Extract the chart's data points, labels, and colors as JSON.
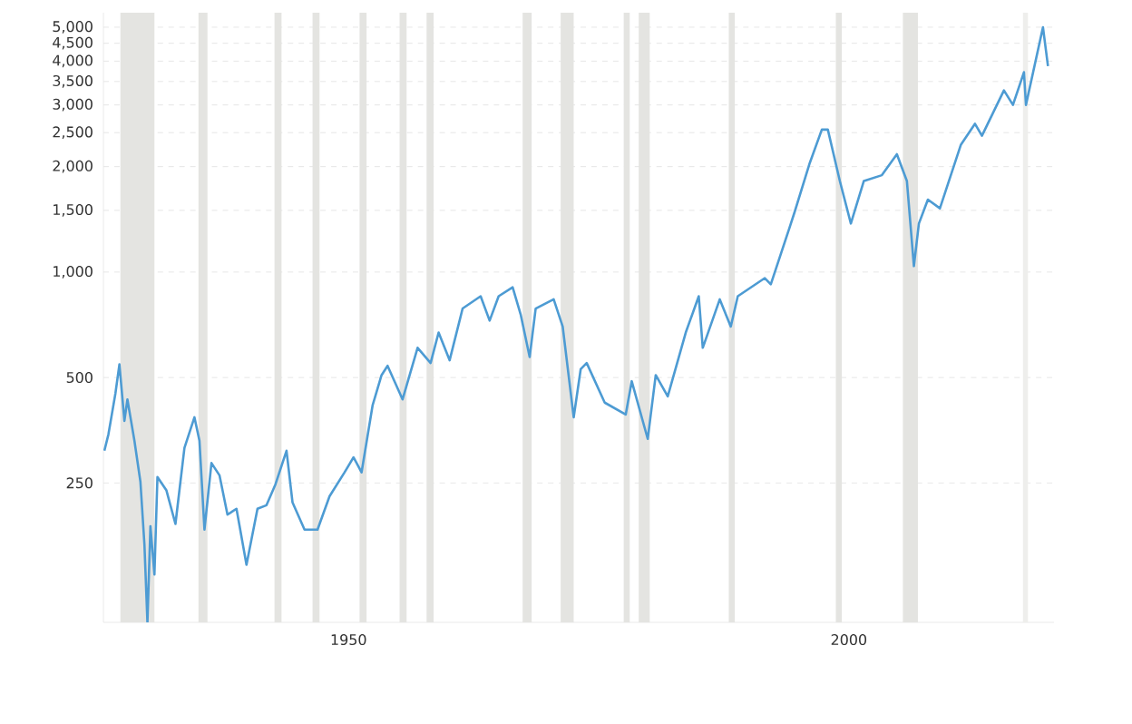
{
  "chart_data": {
    "type": "line",
    "x": [
      1925.6,
      1926.0,
      1926.7,
      1927.1,
      1927.6,
      1927.9,
      1928.6,
      1929.2,
      1929.6,
      1929.9,
      1930.2,
      1930.6,
      1930.9,
      1931.8,
      1932.7,
      1933.6,
      1934.6,
      1935.1,
      1935.6,
      1936.3,
      1937.1,
      1937.9,
      1938.8,
      1939.8,
      1940.9,
      1941.8,
      1942.7,
      1943.8,
      1944.4,
      1945.6,
      1946.9,
      1948.1,
      1949.6,
      1950.5,
      1951.3,
      1952.4,
      1953.3,
      1953.9,
      1955.4,
      1956.9,
      1958.2,
      1959.0,
      1960.1,
      1961.4,
      1963.2,
      1964.1,
      1965.0,
      1966.4,
      1967.2,
      1968.1,
      1968.7,
      1970.5,
      1971.4,
      1972.5,
      1973.2,
      1973.8,
      1975.6,
      1977.7,
      1978.3,
      1979.9,
      1980.7,
      1981.9,
      1983.7,
      1985.0,
      1985.4,
      1987.1,
      1988.2,
      1988.9,
      1991.6,
      1992.2,
      1994.0,
      1994.6,
      1996.1,
      1997.3,
      1997.9,
      1999.1,
      2000.2,
      2001.5,
      2003.3,
      2004.8,
      2005.8,
      2006.5,
      2007.0,
      2007.9,
      2009.1,
      2011.2,
      2012.6,
      2013.3,
      2015.5,
      2016.4,
      2017.5,
      2017.7,
      2019.4,
      2019.9
    ],
    "values": [
      309,
      344,
      450,
      545,
      376,
      433,
      330,
      252,
      167,
      100,
      188,
      137,
      260,
      238,
      191,
      315,
      385,
      330,
      184,
      285,
      263,
      203,
      211,
      146,
      211,
      216,
      248,
      309,
      220,
      184,
      184,
      229,
      268,
      296,
      268,
      416,
      508,
      540,
      433,
      608,
      550,
      672,
      560,
      787,
      853,
      727,
      853,
      905,
      757,
      572,
      787,
      836,
      699,
      385,
      528,
      550,
      424,
      392,
      488,
      334,
      508,
      442,
      672,
      853,
      608,
      836,
      699,
      853,
      961,
      923,
      1320,
      1490,
      2050,
      2550,
      2550,
      1820,
      1376,
      1820,
      1890,
      2170,
      1820,
      1040,
      1376,
      1610,
      1520,
      2310,
      2650,
      2450,
      3300,
      3000,
      3720,
      3000,
      5000,
      3870
    ],
    "color": "#4d9bd3",
    "log": "y",
    "grid": "y",
    "marker": "none",
    "xlim": [
      1925.5,
      2020.5
    ],
    "ylim": [
      100,
      5500
    ],
    "xticks": [
      1950,
      2000
    ],
    "yticks": [
      {
        "value": 250,
        "label": "250"
      },
      {
        "value": 500,
        "label": "500"
      },
      {
        "value": 1000,
        "label": "1,000"
      },
      {
        "value": 1500,
        "label": "1,500"
      },
      {
        "value": 2000,
        "label": "2,000"
      },
      {
        "value": 2500,
        "label": "2,500"
      },
      {
        "value": 3000,
        "label": "3,000"
      },
      {
        "value": 3500,
        "label": "3,500"
      },
      {
        "value": 4000,
        "label": "4,000"
      },
      {
        "value": 4500,
        "label": "4,500"
      },
      {
        "value": 5000,
        "label": "5,000"
      }
    ],
    "bands": [
      {
        "axis": "x",
        "from": 1927.2,
        "to": 1930.6,
        "color": "#e4e4e1"
      },
      {
        "axis": "x",
        "from": 1935.0,
        "to": 1935.9,
        "color": "#e4e4e1"
      },
      {
        "axis": "x",
        "from": 1942.6,
        "to": 1943.3,
        "color": "#e4e4e1"
      },
      {
        "axis": "x",
        "from": 1946.4,
        "to": 1947.1,
        "color": "#e4e4e1"
      },
      {
        "axis": "x",
        "from": 1951.1,
        "to": 1951.8,
        "color": "#e4e4e1"
      },
      {
        "axis": "x",
        "from": 1955.1,
        "to": 1955.8,
        "color": "#e4e4e1"
      },
      {
        "axis": "x",
        "from": 1957.8,
        "to": 1958.5,
        "color": "#e4e4e1"
      },
      {
        "axis": "x",
        "from": 1967.4,
        "to": 1968.3,
        "color": "#e4e4e1"
      },
      {
        "axis": "x",
        "from": 1971.2,
        "to": 1972.5,
        "color": "#e4e4e1"
      },
      {
        "axis": "x",
        "from": 1977.5,
        "to": 1978.1,
        "color": "#e4e4e1"
      },
      {
        "axis": "x",
        "from": 1979.0,
        "to": 1980.1,
        "color": "#e4e4e1"
      },
      {
        "axis": "x",
        "from": 1988.0,
        "to": 1988.6,
        "color": "#e4e4e1"
      },
      {
        "axis": "x",
        "from": 1998.7,
        "to": 1999.3,
        "color": "#e4e4e1"
      },
      {
        "axis": "x",
        "from": 2005.4,
        "to": 2006.9,
        "color": "#e4e4e1"
      },
      {
        "axis": "x",
        "from": 2017.4,
        "to": 2017.9,
        "color": "#eeeeec"
      }
    ]
  }
}
